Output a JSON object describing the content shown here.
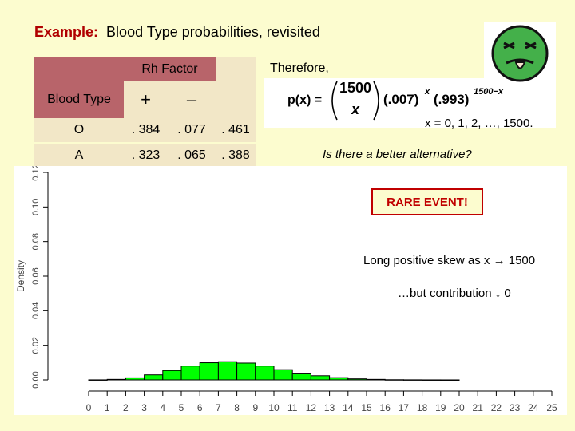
{
  "slide": {
    "title_lead": "Example:",
    "title_rest": "Blood Type probabilities, revisited"
  },
  "table": {
    "rh_header": "Rh Factor",
    "blood_type_header": "Blood Type",
    "plus": "+",
    "minus": "–",
    "rows": [
      {
        "type": "O",
        "pos": ". 384",
        "neg": ". 077",
        "total": ". 461"
      },
      {
        "type": "A",
        "pos": ". 323",
        "neg": ". 065",
        "total": ". 388"
      }
    ]
  },
  "formula": {
    "therefore": "Therefore,",
    "lhs": "p(x) =",
    "binom_top": "1500",
    "binom_bottom": "x",
    "p_base": "(.007)",
    "p_exp": "x",
    "q_base": "(.993)",
    "q_exp": "1500−x",
    "range": "x = 0, 1, 2, …, 1500."
  },
  "callouts": {
    "question": "Is there a better alternative?",
    "rare": "RARE EVENT!",
    "skew": "Long positive skew as x → 1500",
    "contribution": "…but contribution ↓ 0"
  },
  "colors": {
    "background": "#fcfccf",
    "bar_fill": "#00ff00",
    "header_fill": "#b8646a",
    "accent": "#b00000"
  },
  "chart_data": {
    "type": "bar",
    "ylabel": "Density",
    "xlabel": "",
    "x": [
      0,
      1,
      2,
      3,
      4,
      5,
      6,
      7,
      8,
      9,
      10,
      11,
      12,
      13,
      14,
      15,
      16,
      17,
      18,
      19,
      20,
      21,
      22,
      23,
      24,
      25
    ],
    "values": [
      3e-05,
      0.0003,
      0.0012,
      0.0029,
      0.0054,
      0.008,
      0.0099,
      0.0105,
      0.0097,
      0.008,
      0.0059,
      0.0039,
      0.0024,
      0.0013,
      0.0006,
      0.0003,
      0.0001,
      5e-05,
      2e-05,
      1e-05,
      0,
      0,
      0,
      0,
      0,
      0
    ],
    "x_ticks": [
      "0",
      "1",
      "2",
      "3",
      "4",
      "5",
      "6",
      "7",
      "8",
      "9",
      "10",
      "11",
      "12",
      "13",
      "14",
      "15",
      "16",
      "17",
      "18",
      "19",
      "20",
      "21",
      "22",
      "23",
      "24",
      "25"
    ],
    "y_ticks": [
      "0.00",
      "0.02",
      "0.04",
      "0.06",
      "0.08",
      "0.10",
      "0.12"
    ],
    "ylim": [
      0,
      0.12
    ],
    "grid": false
  }
}
